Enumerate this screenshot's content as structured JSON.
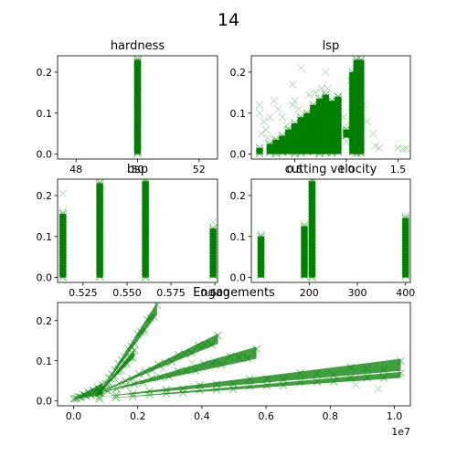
{
  "suptitle": "14",
  "marker_color": "#008000",
  "chart_data": [
    {
      "type": "scatter",
      "title": "hardness",
      "xlim": [
        47.4,
        52.6
      ],
      "ylim": [
        -0.012,
        0.24
      ],
      "xticks": [
        48,
        50,
        52
      ],
      "xtick_labels": [
        "48",
        "50",
        "52"
      ],
      "yticks": [
        0.0,
        0.1,
        0.2
      ],
      "ytick_labels": [
        "0.0",
        "0.1",
        "0.2"
      ],
      "bands": [
        {
          "x": 50,
          "ymin": 0.0,
          "ymax": 0.23
        }
      ],
      "points": [
        [
          50,
          0.235
        ],
        [
          50,
          0.225
        ],
        [
          50,
          0.21
        ],
        [
          50,
          0.195
        ],
        [
          50,
          0.17
        ],
        [
          50,
          0.15
        ],
        [
          50,
          0.12
        ],
        [
          50,
          0.09
        ],
        [
          50,
          0.06
        ],
        [
          50,
          0.03
        ],
        [
          50,
          0.005
        ]
      ]
    },
    {
      "type": "scatter",
      "title": "lsp",
      "xlim": [
        0.08,
        1.62
      ],
      "ylim": [
        -0.012,
        0.24
      ],
      "xticks": [
        0.5,
        1.0,
        1.5
      ],
      "xtick_labels": [
        "0.5",
        "1.0",
        "1.5"
      ],
      "yticks": [
        0.0,
        0.1,
        0.2
      ],
      "ytick_labels": [
        "0.0",
        "0.1",
        "0.2"
      ],
      "bands": [
        {
          "x": 0.16,
          "ymin": 0.0,
          "ymax": 0.015
        },
        {
          "x": 0.26,
          "ymin": 0.0,
          "ymax": 0.025
        },
        {
          "x": 0.32,
          "ymin": 0.0,
          "ymax": 0.035
        },
        {
          "x": 0.38,
          "ymin": 0.0,
          "ymax": 0.045
        },
        {
          "x": 0.44,
          "ymin": 0.0,
          "ymax": 0.06
        },
        {
          "x": 0.5,
          "ymin": 0.0,
          "ymax": 0.075
        },
        {
          "x": 0.56,
          "ymin": 0.0,
          "ymax": 0.09
        },
        {
          "x": 0.62,
          "ymin": 0.0,
          "ymax": 0.1
        },
        {
          "x": 0.68,
          "ymin": 0.0,
          "ymax": 0.12
        },
        {
          "x": 0.74,
          "ymin": 0.0,
          "ymax": 0.135
        },
        {
          "x": 0.8,
          "ymin": 0.0,
          "ymax": 0.145
        },
        {
          "x": 0.86,
          "ymin": 0.0,
          "ymax": 0.13
        },
        {
          "x": 0.92,
          "ymin": 0.0,
          "ymax": 0.14
        },
        {
          "x": 1.0,
          "ymin": 0.04,
          "ymax": 0.06
        },
        {
          "x": 1.06,
          "ymin": 0.0,
          "ymax": 0.2
        },
        {
          "x": 1.1,
          "ymin": 0.0,
          "ymax": 0.23
        },
        {
          "x": 1.14,
          "ymin": 0.0,
          "ymax": 0.23
        }
      ],
      "points": [
        [
          0.16,
          0.12
        ],
        [
          0.16,
          0.1
        ],
        [
          0.2,
          0.08
        ],
        [
          0.22,
          0.06
        ],
        [
          0.26,
          0.09
        ],
        [
          0.3,
          0.13
        ],
        [
          0.34,
          0.11
        ],
        [
          0.3,
          0.035
        ],
        [
          0.34,
          0.025
        ],
        [
          0.38,
          0.09
        ],
        [
          0.42,
          0.07
        ],
        [
          0.48,
          0.12
        ],
        [
          0.5,
          0.13
        ],
        [
          0.54,
          0.11
        ],
        [
          0.58,
          0.05
        ],
        [
          0.64,
          0.145
        ],
        [
          0.7,
          0.15
        ],
        [
          0.76,
          0.16
        ],
        [
          0.82,
          0.16
        ],
        [
          0.88,
          0.12
        ],
        [
          0.92,
          0.14
        ],
        [
          0.97,
          0.09
        ],
        [
          1.0,
          0.07
        ],
        [
          1.0,
          0.03
        ],
        [
          1.04,
          0.18
        ],
        [
          1.17,
          0.12
        ],
        [
          1.2,
          0.08
        ],
        [
          1.26,
          0.05
        ],
        [
          1.28,
          0.02
        ],
        [
          1.32,
          0.015
        ],
        [
          1.5,
          0.015
        ],
        [
          1.55,
          0.012
        ],
        [
          1.58,
          0.014
        ],
        [
          0.56,
          0.21
        ],
        [
          0.8,
          0.2
        ],
        [
          0.48,
          0.17
        ],
        [
          0.18,
          0.05
        ],
        [
          0.24,
          0.04
        ]
      ]
    },
    {
      "type": "scatter",
      "title": "bsp",
      "xlim": [
        0.5105,
        0.6015
      ],
      "ylim": [
        -0.012,
        0.24
      ],
      "xticks": [
        0.525,
        0.55,
        0.575,
        0.6
      ],
      "xtick_labels": [
        "0.525",
        "0.550",
        "0.575",
        "0.600"
      ],
      "yticks": [
        0.0,
        0.1,
        0.2
      ],
      "ytick_labels": [
        "0.0",
        "0.1",
        "0.2"
      ],
      "bands": [
        {
          "x": 0.5135,
          "ymin": 0.0,
          "ymax": 0.155
        },
        {
          "x": 0.5345,
          "ymin": 0.0,
          "ymax": 0.23
        },
        {
          "x": 0.5605,
          "ymin": 0.0,
          "ymax": 0.235
        },
        {
          "x": 0.599,
          "ymin": 0.0,
          "ymax": 0.12
        }
      ],
      "points": [
        [
          0.5135,
          0.205
        ],
        [
          0.5135,
          0.16
        ],
        [
          0.5345,
          0.235
        ],
        [
          0.5605,
          0.24
        ],
        [
          0.599,
          0.135
        ]
      ]
    },
    {
      "type": "scatter",
      "title": "cutting velocity",
      "xlim": [
        80,
        410
      ],
      "ylim": [
        -0.012,
        0.24
      ],
      "xticks": [
        200,
        300,
        400
      ],
      "xtick_labels": [
        "200",
        "300",
        "400"
      ],
      "yticks": [
        0.0,
        0.1,
        0.2
      ],
      "ytick_labels": [
        "0.0",
        "0.1",
        "0.2"
      ],
      "bands": [
        {
          "x": 100,
          "ymin": 0.0,
          "ymax": 0.1
        },
        {
          "x": 190,
          "ymin": 0.0,
          "ymax": 0.125
        },
        {
          "x": 206,
          "ymin": 0.0,
          "ymax": 0.235
        },
        {
          "x": 400,
          "ymin": 0.0,
          "ymax": 0.145
        }
      ],
      "points": [
        [
          100,
          0.105
        ],
        [
          190,
          0.13
        ],
        [
          206,
          0.24
        ],
        [
          400,
          0.15
        ]
      ]
    },
    {
      "type": "scatter",
      "title": "Engagements",
      "xlim": [
        -0.0005,
        0.0105
      ],
      "ylim": [
        -0.012,
        0.245
      ],
      "xticks": [
        0.0,
        0.002,
        0.004,
        0.006,
        0.008,
        0.01
      ],
      "xtick_labels": [
        "0.0",
        "0.2",
        "0.4",
        "0.6",
        "0.8",
        "1.0"
      ],
      "offset_label": "1e7",
      "yticks": [
        0.0,
        0.1,
        0.2
      ],
      "ytick_labels": [
        "0.0",
        "0.1",
        "0.2"
      ],
      "fans": [
        {
          "x0": 0.0,
          "y0": 0.005,
          "x1": 0.0009,
          "y1": 0.03,
          "spread": 0.03
        },
        {
          "x0": 0.0008,
          "y0": 0.02,
          "x1": 0.0026,
          "y1": 0.23,
          "spread": 0.03
        },
        {
          "x0": 0.0008,
          "y0": 0.02,
          "x1": 0.0019,
          "y1": 0.12,
          "spread": 0.02
        },
        {
          "x0": 0.0008,
          "y0": 0.02,
          "x1": 0.0045,
          "y1": 0.155,
          "spread": 0.025
        },
        {
          "x0": 0.0008,
          "y0": 0.02,
          "x1": 0.0057,
          "y1": 0.12,
          "spread": 0.03
        },
        {
          "x0": 0.0008,
          "y0": 0.01,
          "x1": 0.0102,
          "y1": 0.09,
          "spread": 0.03
        },
        {
          "x0": 0.0008,
          "y0": 0.005,
          "x1": 0.0102,
          "y1": 0.065,
          "spread": 0.015
        }
      ],
      "points": [
        [
          0.0095,
          0.03
        ],
        [
          0.0088,
          0.04
        ],
        [
          0.0028,
          0.08
        ],
        [
          0.0037,
          0.095
        ],
        [
          0.0022,
          0.17
        ],
        [
          0.0044,
          0.1
        ]
      ]
    }
  ]
}
